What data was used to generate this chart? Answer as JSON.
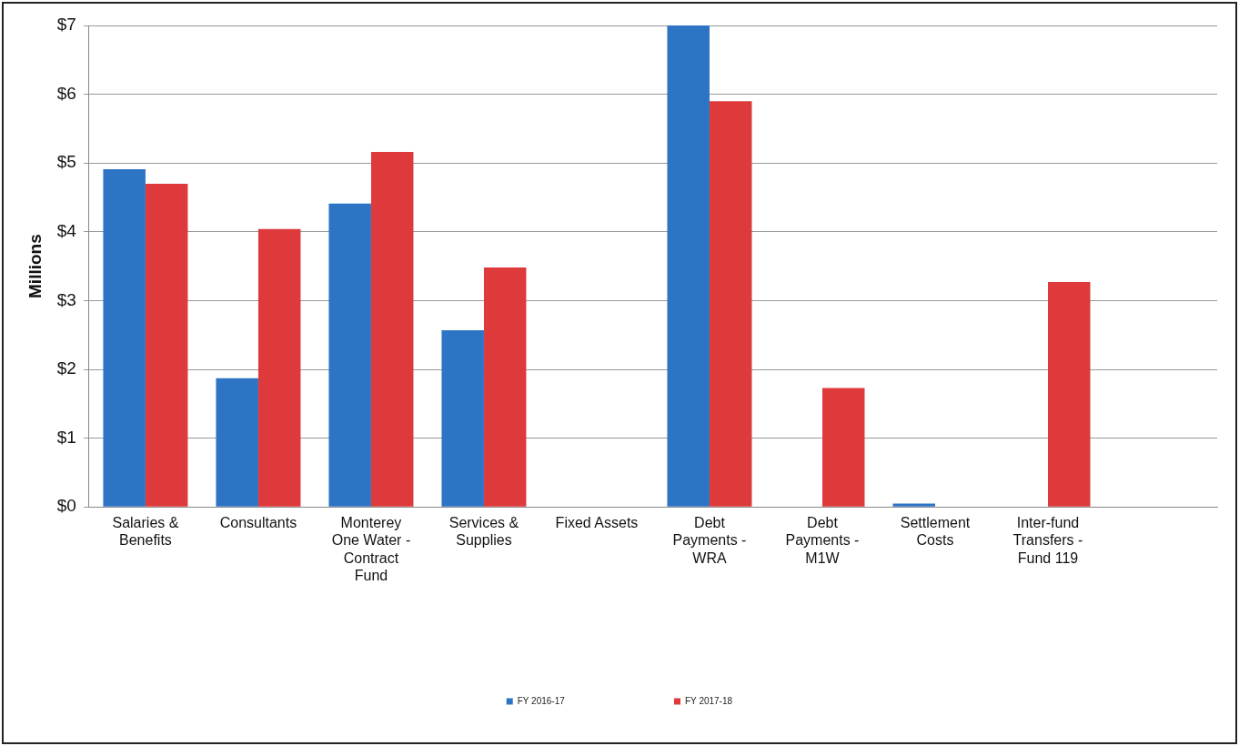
{
  "chart_data": {
    "type": "bar",
    "ylabel": "Millions",
    "categories": [
      "Salaries & Benefits",
      "Consultants",
      "Monterey One Water - Contract Fund",
      "Services & Supplies",
      "Fixed Assets",
      "Debt Payments - WRA",
      "Debt Payments - M1W",
      "Settlement Costs",
      "Inter-fund Transfers - Fund 119",
      null
    ],
    "series": [
      {
        "name": "FY 2016-17",
        "color": "#2e74c4",
        "values": [
          4.91,
          1.87,
          4.41,
          2.57,
          0,
          7.0,
          0,
          0.05,
          0,
          null
        ]
      },
      {
        "name": "FY 2017-18",
        "color": "#de3a3c",
        "values": [
          4.7,
          4.04,
          5.16,
          3.48,
          0,
          5.9,
          1.73,
          0,
          3.27,
          null
        ]
      }
    ],
    "ylim": [
      0,
      7
    ],
    "yticks": [
      {
        "value": 0,
        "label": "$0"
      },
      {
        "value": 1,
        "label": "$1"
      },
      {
        "value": 2,
        "label": "$2"
      },
      {
        "value": 3,
        "label": "$3"
      },
      {
        "value": 4,
        "label": "$4"
      },
      {
        "value": 5,
        "label": "$5"
      },
      {
        "value": 6,
        "label": "$6"
      },
      {
        "value": 7,
        "label": "$7"
      }
    ],
    "grid": "y",
    "legend": "bottom"
  }
}
